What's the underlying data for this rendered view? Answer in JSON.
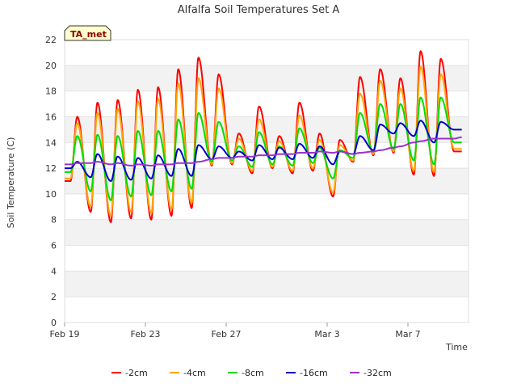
{
  "chart_data": {
    "type": "line",
    "title": "Alfalfa Soil Temperatures Set A",
    "xlabel": "Time",
    "ylabel": "Soil Temperature (C)",
    "badge": "TA_met",
    "ylim": [
      0,
      22
    ],
    "yticks": [
      0,
      2,
      4,
      6,
      8,
      10,
      12,
      14,
      16,
      18,
      20,
      22
    ],
    "xlim": [
      "2024-02-19",
      "2024-03-10"
    ],
    "xticks": [
      {
        "date": "2024-02-19",
        "label": "Feb 19"
      },
      {
        "date": "2024-02-23",
        "label": "Feb 23"
      },
      {
        "date": "2024-02-27",
        "label": "Feb 27"
      },
      {
        "date": "2024-03-03",
        "label": "Mar 3"
      },
      {
        "date": "2024-03-07",
        "label": "Mar 7"
      }
    ],
    "grid": "horizontal bands",
    "legend_position": "bottom",
    "x": [
      "2024-02-19",
      "2024-02-20",
      "2024-02-21",
      "2024-02-22",
      "2024-02-23",
      "2024-02-24",
      "2024-02-25",
      "2024-02-26",
      "2024-02-27",
      "2024-02-28",
      "2024-02-29",
      "2024-03-01",
      "2024-03-02",
      "2024-03-03",
      "2024-03-04",
      "2024-03-05",
      "2024-03-06",
      "2024-03-07",
      "2024-03-08",
      "2024-03-09"
    ],
    "series": [
      {
        "name": "-2cm",
        "color": "#ff0000",
        "min": [
          11.0,
          8.6,
          7.8,
          8.1,
          8.0,
          8.3,
          8.9,
          12.2,
          12.3,
          11.6,
          12.0,
          11.6,
          11.8,
          9.8,
          12.5,
          13.0,
          13.2,
          11.5,
          11.4,
          13.3
        ],
        "max": [
          16.0,
          17.1,
          17.3,
          18.1,
          18.3,
          19.7,
          20.6,
          19.3,
          14.7,
          16.8,
          14.5,
          17.1,
          14.7,
          14.2,
          19.1,
          19.7,
          19.0,
          21.1,
          20.5,
          13.3
        ]
      },
      {
        "name": "-4cm",
        "color": "#ffa500",
        "min": [
          11.2,
          9.0,
          8.3,
          8.6,
          8.5,
          8.8,
          9.3,
          12.3,
          12.4,
          11.8,
          12.1,
          11.8,
          12.0,
          10.1,
          12.6,
          13.1,
          13.3,
          11.8,
          11.7,
          13.5
        ],
        "max": [
          15.5,
          16.3,
          16.6,
          17.2,
          17.4,
          18.6,
          19.0,
          18.2,
          14.3,
          15.8,
          14.1,
          16.1,
          14.2,
          13.8,
          17.8,
          18.8,
          18.2,
          19.9,
          19.3,
          13.5
        ]
      },
      {
        "name": "-8cm",
        "color": "#00dd00",
        "min": [
          11.7,
          10.2,
          9.5,
          9.8,
          9.9,
          10.2,
          10.4,
          12.5,
          12.6,
          12.1,
          12.3,
          12.2,
          12.4,
          11.2,
          12.8,
          13.3,
          13.5,
          12.6,
          12.3,
          14.0
        ],
        "max": [
          14.5,
          14.6,
          14.5,
          14.9,
          14.9,
          15.8,
          16.3,
          15.6,
          13.7,
          14.8,
          13.7,
          15.1,
          13.6,
          13.4,
          16.3,
          17.0,
          17.0,
          17.5,
          17.5,
          14.0
        ]
      },
      {
        "name": "-16cm",
        "color": "#0000cc",
        "min": [
          12.0,
          11.3,
          11.0,
          11.1,
          11.2,
          11.4,
          11.4,
          12.7,
          12.8,
          12.6,
          12.7,
          12.7,
          12.8,
          12.3,
          13.1,
          13.4,
          14.7,
          14.5,
          14.0,
          15.0
        ],
        "max": [
          12.5,
          13.1,
          12.9,
          12.8,
          13.0,
          13.5,
          13.8,
          13.7,
          13.3,
          13.8,
          13.6,
          13.9,
          13.7,
          13.3,
          14.5,
          15.4,
          15.5,
          15.7,
          15.6,
          15.0
        ]
      },
      {
        "name": "-32cm",
        "color": "#9933cc",
        "min": [
          12.3,
          12.4,
          12.3,
          12.2,
          12.2,
          12.3,
          12.4,
          12.7,
          12.8,
          12.9,
          13.0,
          13.1,
          13.2,
          13.2,
          13.1,
          13.3,
          13.6,
          14.0,
          14.3,
          14.3
        ],
        "max": [
          12.4,
          12.5,
          12.4,
          12.3,
          12.3,
          12.4,
          12.5,
          12.8,
          12.9,
          13.0,
          13.1,
          13.2,
          13.3,
          13.3,
          13.2,
          13.4,
          13.7,
          14.1,
          14.3,
          14.4
        ]
      }
    ]
  }
}
